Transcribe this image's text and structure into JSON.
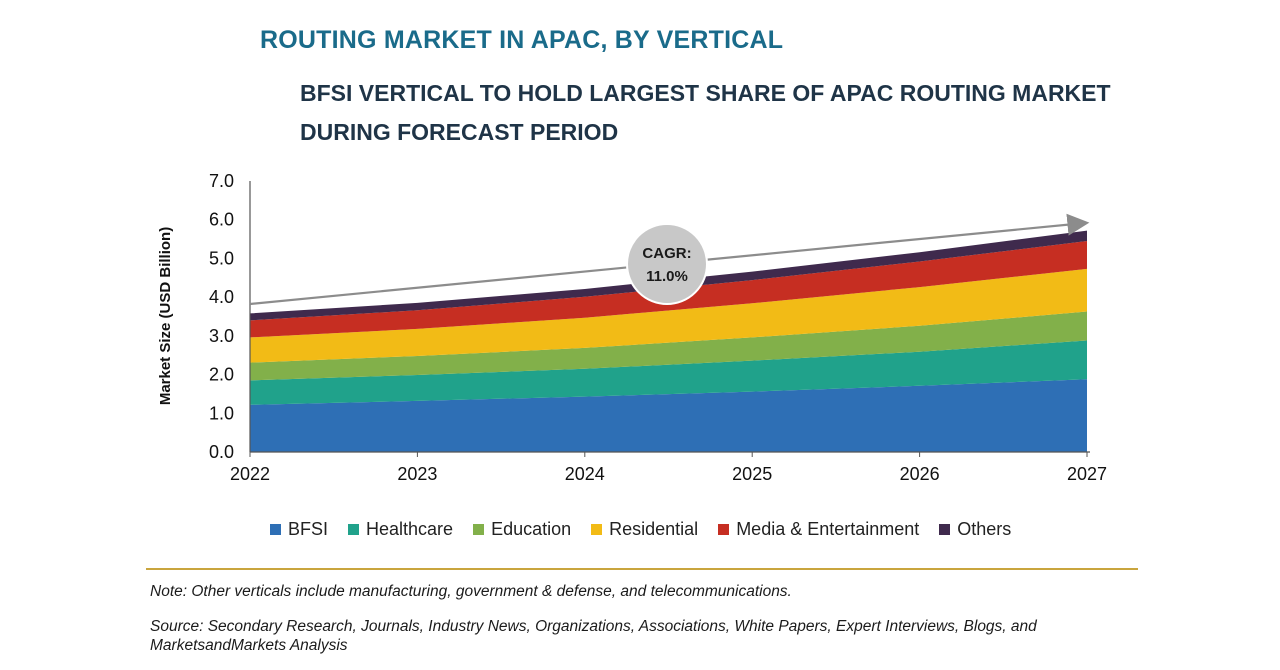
{
  "title": "ROUTING MARKET IN APAC, BY VERTICAL",
  "subtitle": "BFSI VERTICAL TO HOLD LARGEST SHARE OF APAC ROUTING MARKET DURING FORECAST PERIOD",
  "note": "Note: Other verticals include manufacturing, government & defense, and telecommunications.",
  "source": "Source: Secondary Research, Journals, Industry News, Organizations, Associations, White Papers, Expert Interviews, Blogs, and MarketsandMarkets Analysis",
  "chart_data": {
    "type": "area",
    "stacked": true,
    "x": [
      "2022",
      "2023",
      "2024",
      "2025",
      "2026",
      "2027"
    ],
    "ylabel": "Market Size (USD Billion)",
    "ylim": [
      0,
      7
    ],
    "yticks": [
      "0.0",
      "1.0",
      "2.0",
      "3.0",
      "4.0",
      "5.0",
      "6.0",
      "7.0"
    ],
    "series": [
      {
        "name": "BFSI",
        "color": "#2e6fb5",
        "values": [
          1.22,
          1.32,
          1.43,
          1.56,
          1.71,
          1.88
        ]
      },
      {
        "name": "Healthcare",
        "color": "#20a28b",
        "values": [
          0.63,
          0.67,
          0.72,
          0.8,
          0.88,
          1.0
        ]
      },
      {
        "name": "Education",
        "color": "#82b04a",
        "values": [
          0.46,
          0.49,
          0.54,
          0.6,
          0.67,
          0.75
        ]
      },
      {
        "name": "Residential",
        "color": "#f2bb16",
        "values": [
          0.65,
          0.7,
          0.78,
          0.88,
          1.0,
          1.1
        ]
      },
      {
        "name": "Media & Entertainment",
        "color": "#c62e22",
        "values": [
          0.44,
          0.48,
          0.54,
          0.6,
          0.66,
          0.72
        ]
      },
      {
        "name": "Others",
        "color": "#3f2a4d",
        "values": [
          0.18,
          0.19,
          0.2,
          0.22,
          0.24,
          0.27
        ]
      }
    ],
    "annotation": {
      "label": "CAGR:",
      "value": "11.0%"
    }
  }
}
